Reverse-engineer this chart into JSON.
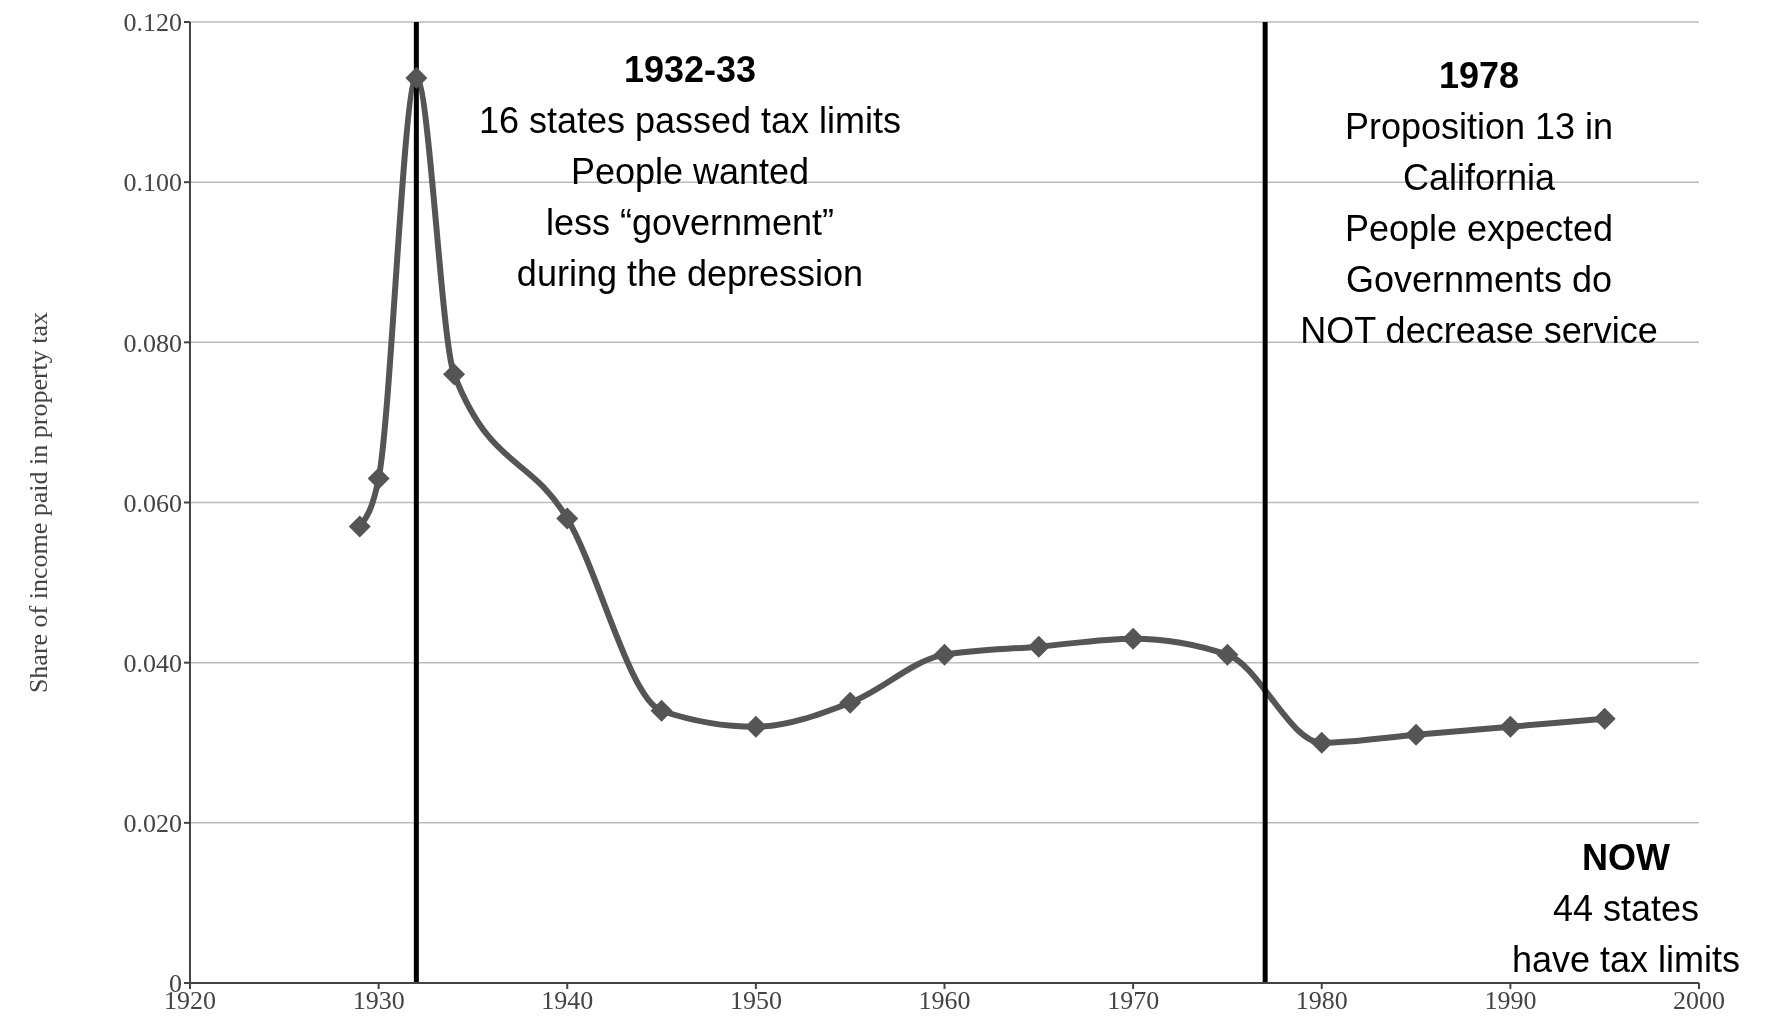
{
  "chart_data": {
    "type": "line",
    "ylabel": "Share of income paid in property tax",
    "x": [
      1929,
      1930,
      1932,
      1934,
      1940,
      1945,
      1950,
      1955,
      1960,
      1965,
      1970,
      1975,
      1980,
      1985,
      1990,
      1995
    ],
    "series": [
      {
        "color": "#555555",
        "values": [
          0.057,
          0.063,
          0.113,
          0.076,
          0.058,
          0.034,
          0.032,
          0.035,
          0.041,
          0.042,
          0.043,
          0.041,
          0.03,
          0.031,
          0.032,
          0.033
        ]
      }
    ],
    "xlim": [
      1920,
      2000
    ],
    "xticks": [
      1920,
      1930,
      1940,
      1950,
      1960,
      1970,
      1980,
      1990,
      2000
    ],
    "ylim": [
      0,
      0.12
    ],
    "yticks": [
      0,
      {
        "value": 0.02,
        "label": "0.020"
      },
      {
        "value": 0.04,
        "label": "0.040"
      },
      {
        "value": 0.06,
        "label": "0.060"
      },
      {
        "value": 0.08,
        "label": "0.080"
      },
      {
        "value": 0.1,
        "label": "0.100"
      },
      {
        "value": 0.12,
        "label": "0.120"
      }
    ],
    "grid": "y",
    "marker": "diamond",
    "line_style": "solid",
    "legend": false,
    "ref_lines": [
      {
        "axis": "x",
        "value": 1932,
        "color": "#000000"
      },
      {
        "axis": "x",
        "value": 1977,
        "color": "#000000"
      }
    ],
    "annotations": [
      "1932-33\n16 states passed tax limits\nPeople wanted\nless “government”\nduring the depression",
      "1978\nProposition 13 in\nCalifornia\nPeople expected\nGovernments do\nNOT decrease service",
      "NOW\n44 states\nhave tax limits"
    ]
  }
}
